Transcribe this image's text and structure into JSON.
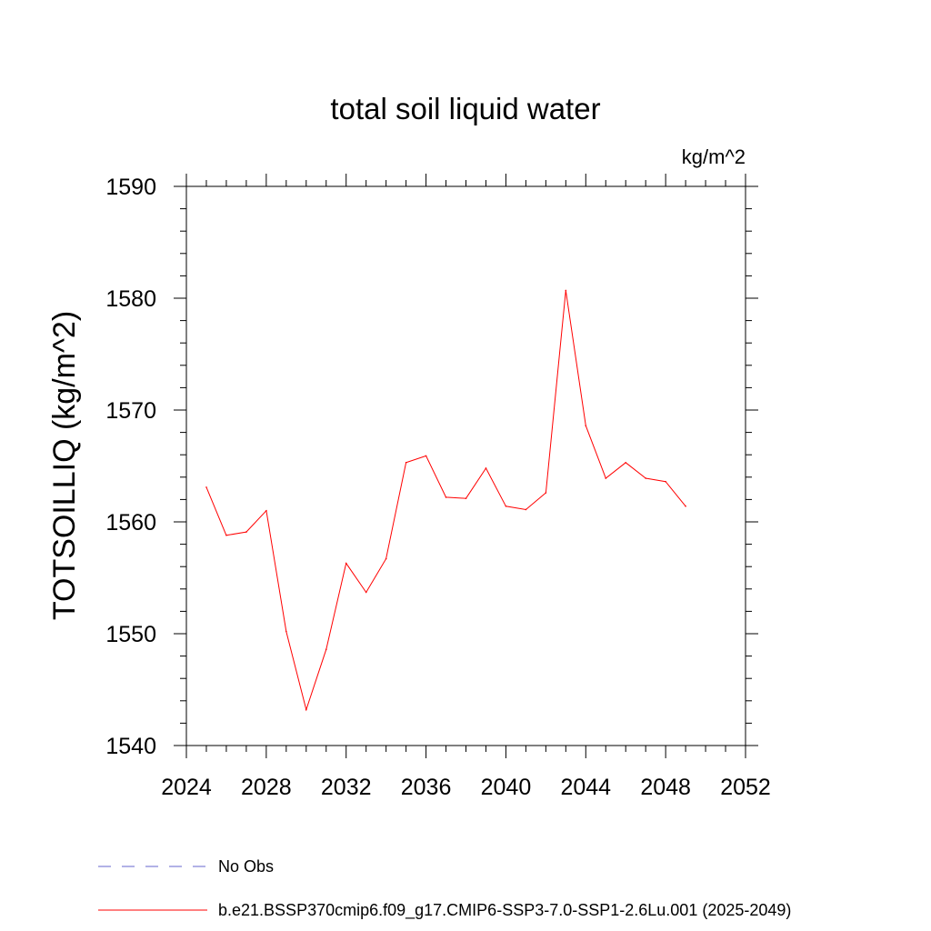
{
  "chart_data": {
    "type": "line",
    "title": "total soil liquid water",
    "units_label": "kg/m^2",
    "ylabel": "TOTSOILLIQ  (kg/m^2)",
    "xlabel": "",
    "xlim": [
      2024,
      2052
    ],
    "ylim": [
      1540,
      1590
    ],
    "x_ticks": [
      2024,
      2028,
      2032,
      2036,
      2040,
      2044,
      2048,
      2052
    ],
    "y_ticks": [
      1540,
      1550,
      1560,
      1570,
      1580,
      1590
    ],
    "x_minor_step": 1,
    "y_minor_step": 2,
    "grid": false,
    "series": [
      {
        "name": "b.e21.BSSP370cmip6.f09_g17.CMIP6-SSP3-7.0-SSP1-2.6Lu.001 (2025-2049)",
        "color": "#ff0000",
        "x": [
          2025,
          2026,
          2027,
          2028,
          2029,
          2030,
          2031,
          2032,
          2033,
          2034,
          2035,
          2036,
          2037,
          2038,
          2039,
          2040,
          2041,
          2042,
          2043,
          2044,
          2045,
          2046,
          2047,
          2048,
          2049
        ],
        "y": [
          1563.1,
          1558.8,
          1559.1,
          1561.0,
          1550.2,
          1543.2,
          1548.6,
          1556.3,
          1553.7,
          1556.7,
          1565.3,
          1565.9,
          1562.2,
          1562.1,
          1564.8,
          1561.4,
          1561.1,
          1562.6,
          1580.7,
          1568.6,
          1563.9,
          1565.3,
          1563.9,
          1563.6,
          1561.4
        ]
      }
    ],
    "legend": {
      "placement": "bottom-left",
      "entries": [
        {
          "label": "No Obs",
          "color": "#6666cc",
          "style": "dashed"
        },
        {
          "label": "b.e21.BSSP370cmip6.f09_g17.CMIP6-SSP3-7.0-SSP1-2.6Lu.001 (2025-2049)",
          "color": "#ff0000",
          "style": "solid"
        }
      ]
    }
  }
}
